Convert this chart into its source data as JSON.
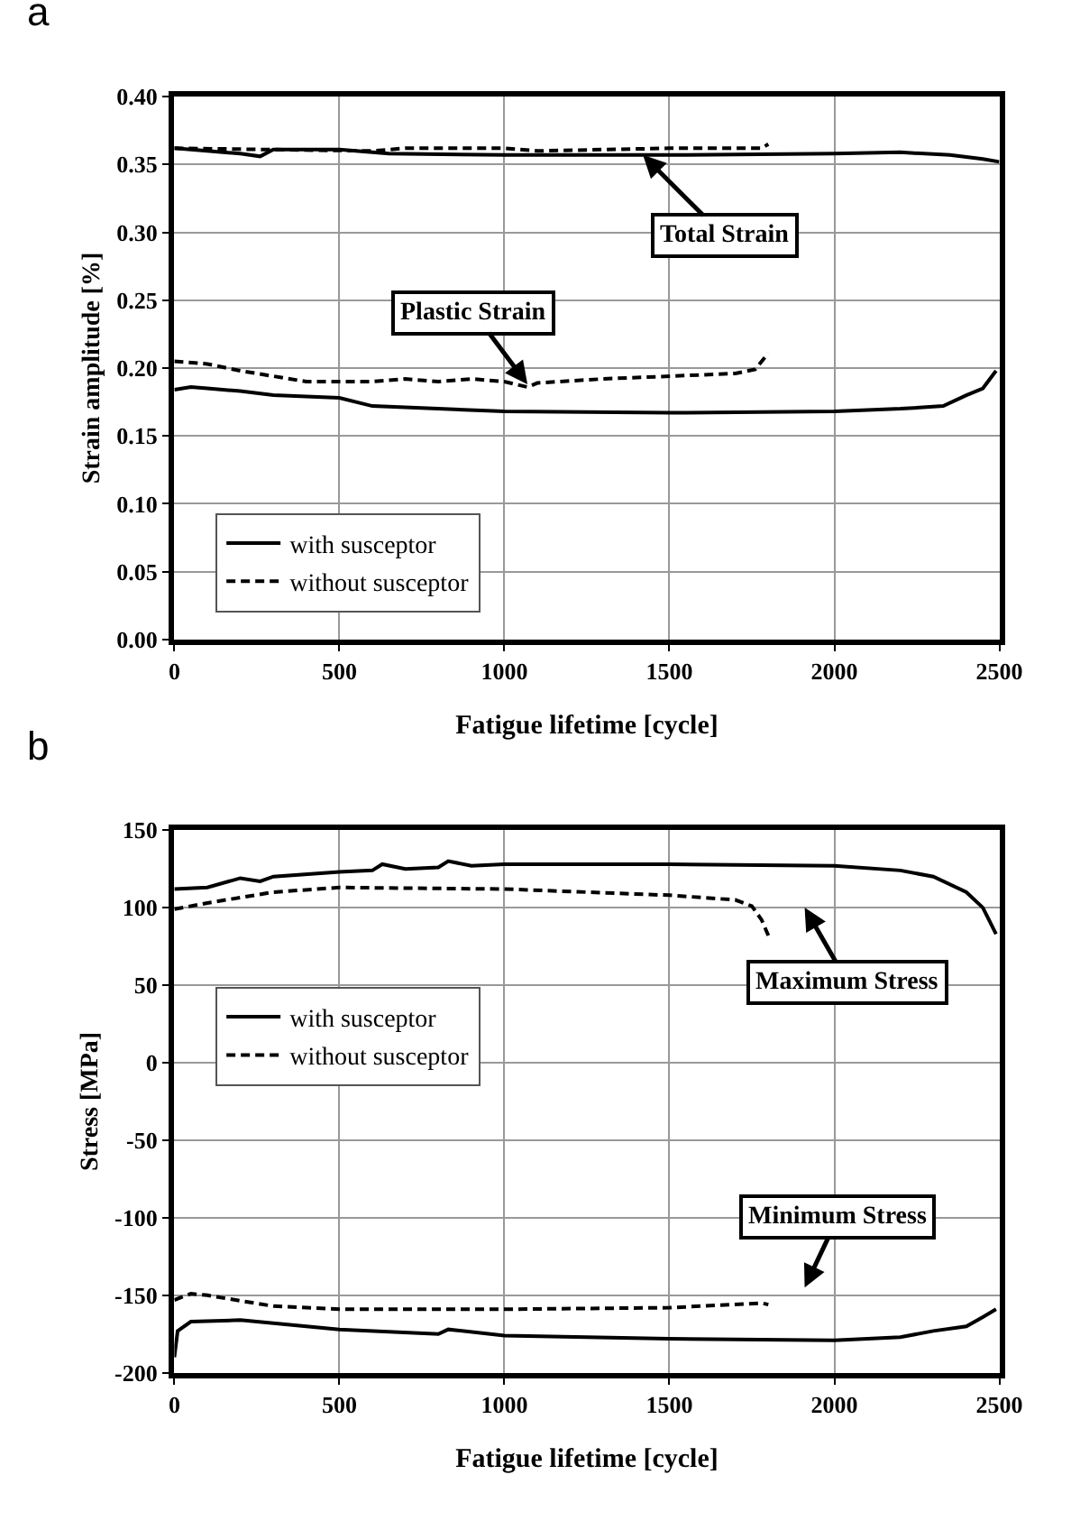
{
  "chart_data": [
    {
      "type": "line",
      "title": "a",
      "xlabel": "Fatigue lifetime [cycle]",
      "ylabel": "Strain amplitude [%]",
      "xlim": [
        0,
        2500
      ],
      "xticks": [
        0,
        500,
        1000,
        1500,
        2000,
        2500
      ],
      "ylim": [
        0,
        0.4
      ],
      "yticks": [
        {
          "value": 0,
          "label": "0.00"
        },
        {
          "value": 0.05,
          "label": "0.05"
        },
        {
          "value": 0.1,
          "label": "0.10"
        },
        {
          "value": 0.15,
          "label": "0.15"
        },
        {
          "value": 0.2,
          "label": "0.20"
        },
        {
          "value": 0.25,
          "label": "0.25"
        },
        {
          "value": 0.3,
          "label": "0.30"
        },
        {
          "value": 0.35,
          "label": "0.35"
        },
        {
          "value": 0.4,
          "label": "0.40"
        }
      ],
      "grid": true,
      "legend": "bottom left",
      "marker": "none",
      "annotations": [
        {
          "text": "Total Strain",
          "x": 1420,
          "y": 0.357
        },
        {
          "text": "Plastic Strain",
          "x": 1070,
          "y": 0.188
        }
      ],
      "series": [
        {
          "name": "with susceptor",
          "color": "#000000",
          "line_style": "solid",
          "x": [
            0,
            100,
            200,
            260,
            300,
            500,
            650,
            1000,
            1500,
            2000,
            2200,
            2350,
            2450,
            2500
          ],
          "values": [
            0.362,
            0.36,
            0.358,
            0.356,
            0.361,
            0.361,
            0.358,
            0.357,
            0.357,
            0.358,
            0.359,
            0.357,
            0.354,
            0.352
          ]
        },
        {
          "name": "without susceptor",
          "color": "#000000",
          "line_style": "dashed",
          "x": [
            0,
            300,
            600,
            700,
            1000,
            1100,
            1500,
            1780,
            1800
          ],
          "values": [
            0.362,
            0.361,
            0.36,
            0.362,
            0.362,
            0.36,
            0.362,
            0.362,
            0.365
          ]
        },
        {
          "color": "#000000",
          "line_style": "dashed",
          "x": [
            0,
            100,
            200,
            300,
            400,
            600,
            700,
            800,
            900,
            1000,
            1070,
            1100,
            1300,
            1500,
            1700,
            1760,
            1800
          ],
          "values": [
            0.205,
            0.203,
            0.198,
            0.194,
            0.19,
            0.19,
            0.192,
            0.19,
            0.192,
            0.19,
            0.186,
            0.189,
            0.192,
            0.194,
            0.196,
            0.199,
            0.211
          ]
        },
        {
          "color": "#000000",
          "line_style": "solid",
          "x": [
            0,
            50,
            100,
            200,
            300,
            500,
            600,
            800,
            1000,
            1500,
            2000,
            2200,
            2330,
            2400,
            2450,
            2490
          ],
          "values": [
            0.184,
            0.186,
            0.185,
            0.183,
            0.18,
            0.178,
            0.172,
            0.17,
            0.168,
            0.167,
            0.168,
            0.17,
            0.172,
            0.18,
            0.185,
            0.198
          ]
        }
      ]
    },
    {
      "type": "line",
      "title": "b",
      "xlabel": "Fatigue lifetime [cycle]",
      "ylabel": "Stress [MPa]",
      "xlim": [
        0,
        2500
      ],
      "xticks": [
        0,
        500,
        1000,
        1500,
        2000,
        2500
      ],
      "ylim": [
        -200,
        150
      ],
      "yticks": [
        -200,
        -150,
        -100,
        -50,
        0,
        50,
        100,
        150
      ],
      "grid": true,
      "legend": "left",
      "marker": "none",
      "annotations": [
        "Maximum Stress",
        "Minimum Stress"
      ],
      "series": [
        {
          "name": "with susceptor",
          "color": "#000000",
          "line_style": "solid",
          "x": [
            0,
            100,
            200,
            260,
            300,
            500,
            600,
            630,
            700,
            800,
            830,
            900,
            1000,
            1500,
            2000,
            2200,
            2300,
            2400,
            2450,
            2490
          ],
          "values": [
            112,
            113,
            119,
            117,
            120,
            123,
            124,
            128,
            125,
            126,
            130,
            127,
            128,
            128,
            127,
            124,
            120,
            110,
            100,
            83
          ]
        },
        {
          "name": "without susceptor",
          "color": "#000000",
          "line_style": "dashed",
          "x": [
            0,
            100,
            300,
            500,
            1000,
            1500,
            1700,
            1750,
            1780,
            1800
          ],
          "values": [
            99,
            103,
            110,
            113,
            112,
            108,
            105,
            101,
            92,
            82
          ]
        },
        {
          "color": "#000000",
          "line_style": "dashed",
          "x": [
            0,
            50,
            100,
            300,
            500,
            1000,
            1500,
            1780,
            1800
          ],
          "values": [
            -153,
            -149,
            -150,
            -157,
            -159,
            -159,
            -158,
            -155,
            -156
          ]
        },
        {
          "color": "#000000",
          "line_style": "solid",
          "x": [
            0,
            10,
            50,
            200,
            500,
            800,
            830,
            1000,
            1500,
            2000,
            2200,
            2300,
            2400,
            2450,
            2490
          ],
          "values": [
            -190,
            -173,
            -167,
            -166,
            -172,
            -175,
            -172,
            -176,
            -178,
            -179,
            -177,
            -173,
            -170,
            -164,
            -159
          ]
        }
      ]
    }
  ]
}
